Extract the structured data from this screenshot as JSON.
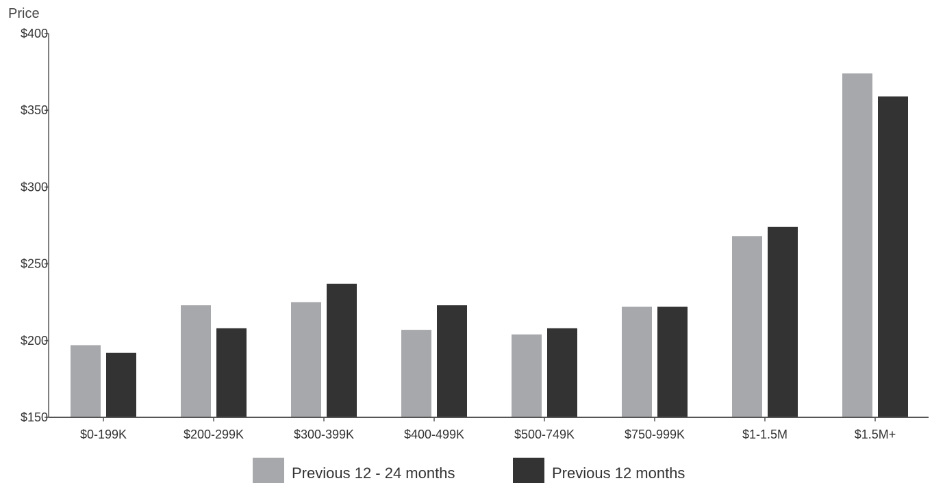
{
  "chart_data": {
    "type": "bar",
    "ylabel": "Price",
    "xlabel": "",
    "ylim": [
      150,
      400
    ],
    "yticks": [
      150,
      200,
      250,
      300,
      350,
      400
    ],
    "ytick_labels": [
      "$150",
      "$200",
      "$250",
      "$300",
      "$350",
      "$400"
    ],
    "categories": [
      "$0-199K",
      "$200-299K",
      "$300-399K",
      "$400-499K",
      "$500-749K",
      "$750-999K",
      "$1-1.5M",
      "$1.5M+"
    ],
    "series": [
      {
        "name": "Previous 12 - 24 months",
        "color": "#a7a8ab",
        "values": [
          197,
          223,
          225,
          207,
          204,
          222,
          268,
          374
        ]
      },
      {
        "name": "Previous 12 months",
        "color": "#333333",
        "values": [
          192,
          208,
          237,
          223,
          208,
          222,
          274,
          359
        ]
      }
    ],
    "grid": false,
    "legend_position": "bottom"
  }
}
